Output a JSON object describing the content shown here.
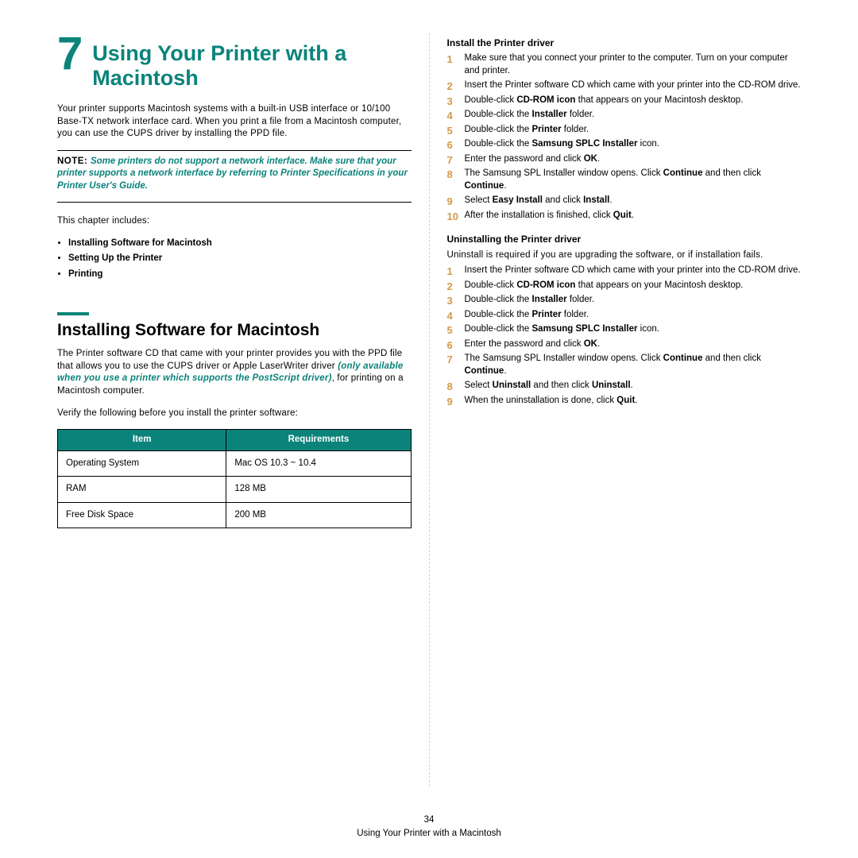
{
  "colors": {
    "accent": "#0a837b",
    "step_number": "#d39a4a",
    "divider": "#c0ddd9",
    "text": "#000000",
    "background": "#ffffff"
  },
  "chapter": {
    "number": "7",
    "title": "Using Your Printer with a Macintosh"
  },
  "intro": "Your printer supports Macintosh systems with a built-in USB interface or 10/100 Base-TX network interface card. When you print a file from a Macintosh computer, you can use the CUPS driver by installing the PPD file.",
  "note": {
    "label": "NOTE: ",
    "text": "Some printers do not support a network interface. Make sure that your printer supports a network interface by referring to Printer Specifications in your Printer User's Guide."
  },
  "chapter_includes_label": "This chapter includes:",
  "chapter_includes": [
    "Installing Software for Macintosh",
    "Setting Up the Printer",
    "Printing"
  ],
  "section1": {
    "title": "Installing Software for Macintosh",
    "p1_pre": "The Printer software CD that came with your printer provides you with the PPD file that allows you to use the CUPS driver or Apple LaserWriter driver ",
    "p1_em": "(only available when you use a printer which supports the PostScript driver)",
    "p1_post": ", for printing on a Macintosh computer.",
    "p2": "Verify the following before you install the printer software:"
  },
  "req_table": {
    "columns": [
      "Item",
      "Requirements"
    ],
    "rows": [
      [
        "Operating System",
        "Mac OS 10.3 ~ 10.4"
      ],
      [
        "RAM",
        "128 MB"
      ],
      [
        "Free Disk Space",
        "200 MB"
      ]
    ]
  },
  "install": {
    "heading": "Install the Printer driver",
    "steps": [
      [
        [
          "",
          "Make sure that you connect your printer to the computer. Turn on your computer and printer."
        ]
      ],
      [
        [
          "",
          "Insert the Printer software CD which came with your printer into the CD-ROM drive."
        ]
      ],
      [
        [
          "",
          "Double-click "
        ],
        [
          "b",
          "CD-ROM icon"
        ],
        [
          "",
          " that appears on your Macintosh desktop."
        ]
      ],
      [
        [
          "",
          "Double-click the "
        ],
        [
          "b",
          "Installer"
        ],
        [
          "",
          " folder."
        ]
      ],
      [
        [
          "",
          "Double-click the "
        ],
        [
          "b",
          "Printer"
        ],
        [
          "",
          " folder."
        ]
      ],
      [
        [
          "",
          "Double-click the "
        ],
        [
          "b",
          "Samsung SPLC Installer"
        ],
        [
          "",
          " icon."
        ]
      ],
      [
        [
          "",
          "Enter the password and click "
        ],
        [
          "b",
          "OK"
        ],
        [
          "",
          "."
        ]
      ],
      [
        [
          "",
          "The Samsung SPL Installer window opens. Click "
        ],
        [
          "b",
          "Continue"
        ],
        [
          "",
          " and then click "
        ],
        [
          "b",
          "Continue"
        ],
        [
          "",
          "."
        ]
      ],
      [
        [
          "",
          "Select "
        ],
        [
          "b",
          "Easy Install"
        ],
        [
          "",
          " and click "
        ],
        [
          "b",
          "Install"
        ],
        [
          "",
          "."
        ]
      ],
      [
        [
          "",
          "After the installation is finished, click "
        ],
        [
          "b",
          "Quit"
        ],
        [
          "",
          "."
        ]
      ]
    ]
  },
  "uninstall": {
    "heading": "Uninstalling the Printer driver",
    "intro": "Uninstall is required if you are upgrading the software, or if installation fails.",
    "steps": [
      [
        [
          "",
          "Insert the Printer software CD which came with your printer into the CD-ROM drive."
        ]
      ],
      [
        [
          "",
          "Double-click "
        ],
        [
          "b",
          "CD-ROM icon"
        ],
        [
          "",
          " that appears on your Macintosh desktop."
        ]
      ],
      [
        [
          "",
          "Double-click the "
        ],
        [
          "b",
          "Installer"
        ],
        [
          "",
          " folder."
        ]
      ],
      [
        [
          "",
          "Double-click the "
        ],
        [
          "b",
          "Printer"
        ],
        [
          "",
          " folder."
        ]
      ],
      [
        [
          "",
          "Double-click the "
        ],
        [
          "b",
          "Samsung SPLC Installer"
        ],
        [
          "",
          " icon."
        ]
      ],
      [
        [
          "",
          "Enter the password and click "
        ],
        [
          "b",
          "OK"
        ],
        [
          "",
          "."
        ]
      ],
      [
        [
          "",
          "The Samsung SPL Installer window opens. Click "
        ],
        [
          "b",
          "Continue"
        ],
        [
          "",
          " and then click "
        ],
        [
          "b",
          "Continue"
        ],
        [
          "",
          "."
        ]
      ],
      [
        [
          "",
          "Select "
        ],
        [
          "b",
          "Uninstall"
        ],
        [
          "",
          " and then click "
        ],
        [
          "b",
          "Uninstall"
        ],
        [
          "",
          "."
        ]
      ],
      [
        [
          "",
          "When the uninstallation is done, click "
        ],
        [
          "b",
          "Quit"
        ],
        [
          "",
          "."
        ]
      ]
    ]
  },
  "footer": {
    "page_number": "34",
    "running_title": "Using Your Printer with a Macintosh"
  }
}
